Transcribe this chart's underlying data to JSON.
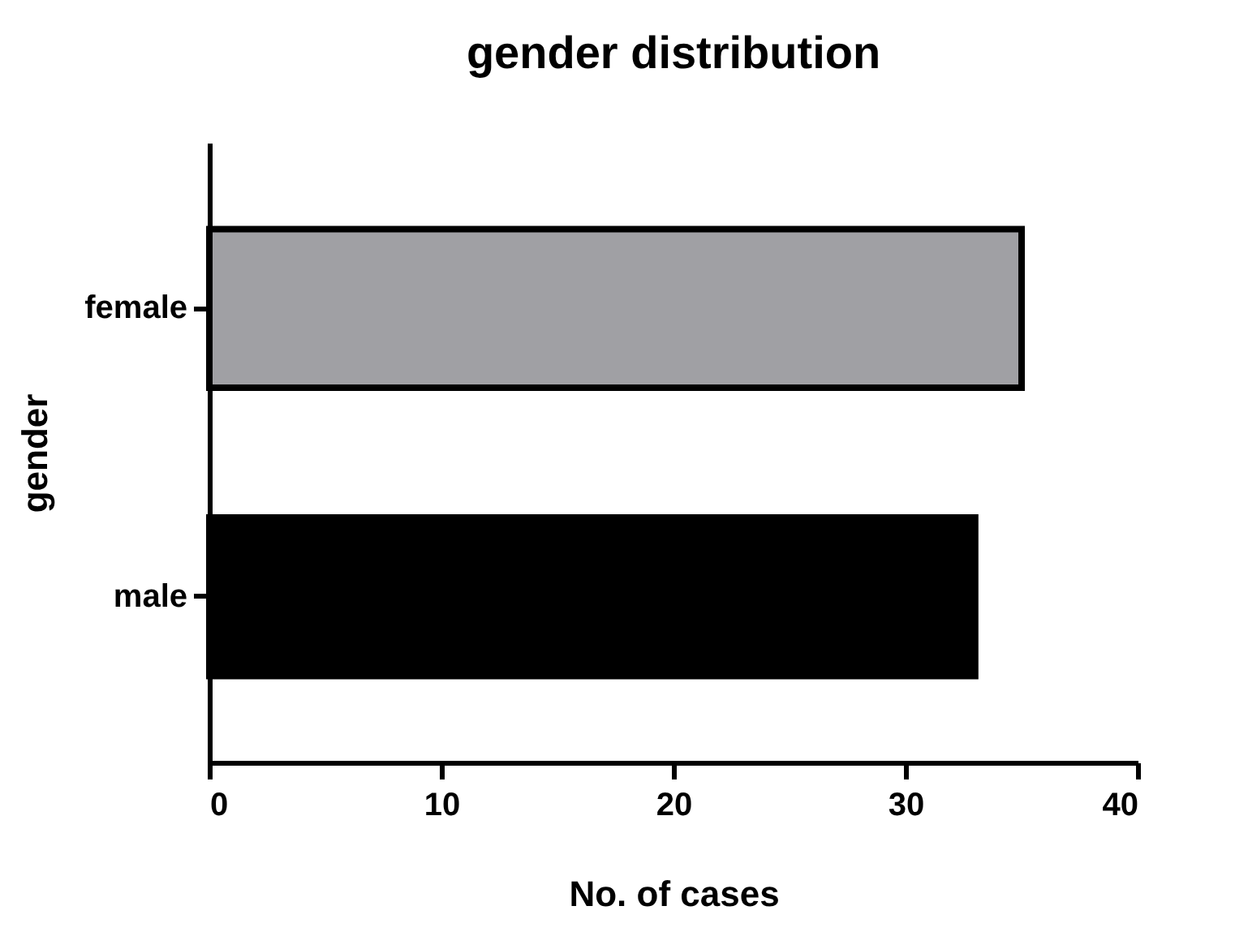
{
  "chart_data": {
    "type": "bar",
    "orientation": "horizontal",
    "title": "gender distribution",
    "xlabel": "No. of cases",
    "ylabel": "gender",
    "categories": [
      "female",
      "male"
    ],
    "values": [
      35,
      33
    ],
    "colors": [
      "#a0a0a4",
      "#000000"
    ],
    "xlim": [
      0,
      40
    ],
    "xticks": [
      0,
      10,
      20,
      30,
      40
    ],
    "grid": false
  }
}
